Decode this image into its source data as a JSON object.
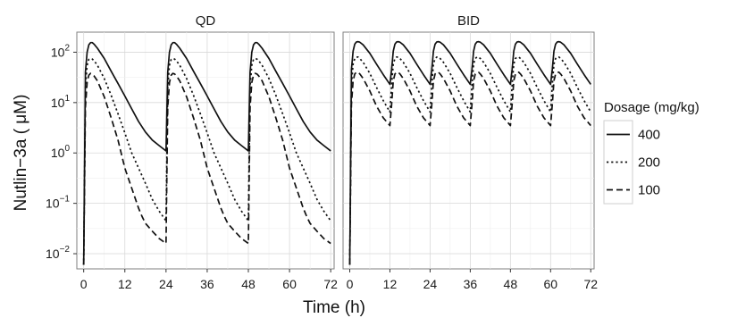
{
  "chart_data": {
    "type": "line",
    "facet_by": "regimen",
    "panels": [
      {
        "title": "QD",
        "dose_times_h": [
          0,
          24,
          48
        ],
        "series": [
          {
            "name": "400",
            "x": [
              0,
              0.5,
              1,
              1.5,
              2,
              2.5,
              3,
              4,
              6,
              8,
              10,
              12,
              14,
              16,
              18,
              20,
              22,
              24
            ],
            "y": [
              0.006,
              40,
              100,
              140,
              155,
              155,
              145,
              120,
              75,
              42,
              24,
              13.5,
              7.5,
              4.2,
              2.6,
              1.8,
              1.4,
              1.1
            ]
          },
          {
            "name": "200",
            "x": [
              0,
              0.5,
              1,
              1.5,
              2,
              2.5,
              3,
              4,
              6,
              8,
              10,
              12,
              14,
              16,
              18,
              20,
              22,
              24
            ],
            "y": [
              0.006,
              20,
              55,
              72,
              75,
              73,
              68,
              55,
              30,
              14,
              6,
              2.5,
              1,
              0.5,
              0.25,
              0.12,
              0.07,
              0.045
            ]
          },
          {
            "name": "100",
            "x": [
              0,
              0.5,
              1,
              1.5,
              2,
              2.5,
              3,
              4,
              6,
              8,
              10,
              12,
              14,
              16,
              17,
              18,
              20,
              22,
              24
            ],
            "y": [
              0.006,
              8,
              25,
              35,
              38,
              37,
              34,
              27,
              13,
              5,
              1.8,
              0.5,
              0.2,
              0.08,
              0.055,
              0.04,
              0.028,
              0.02,
              0.016
            ]
          }
        ]
      },
      {
        "title": "BID",
        "dose_times_h": [
          0,
          12,
          24,
          36,
          48,
          60
        ],
        "series": [
          {
            "name": "400",
            "x": [
              0,
              0.5,
              1,
              1.5,
              2,
              2.5,
              3,
              4,
              6,
              8,
              10,
              12
            ],
            "y": [
              0.006,
              45,
              105,
              145,
              160,
              162,
              158,
              140,
              95,
              58,
              36,
              23
            ]
          },
          {
            "name": "200",
            "x": [
              0,
              0.5,
              1,
              1.5,
              2,
              2.5,
              3,
              4,
              6,
              8,
              10,
              12
            ],
            "y": [
              0.006,
              22,
              58,
              75,
              80,
              80,
              75,
              63,
              38,
              20,
              11,
              6.5
            ]
          },
          {
            "name": "100",
            "x": [
              0,
              0.5,
              1,
              1.5,
              2,
              2.5,
              3,
              4,
              6,
              8,
              10,
              12
            ],
            "y": [
              0.006,
              9,
              27,
              37,
              40,
              40,
              37,
              30,
              17,
              8.5,
              5,
              3.5
            ]
          }
        ]
      }
    ],
    "xlabel": "Time (h)",
    "ylabel": "Nutlin−3a ( μM)",
    "x_ticks": [
      "0",
      "12",
      "24",
      "36",
      "48",
      "60",
      "72"
    ],
    "xlim": [
      -2,
      73
    ],
    "yscale": "log",
    "ylim": [
      0.005,
      250
    ],
    "y_ticks": [
      {
        "base": "10",
        "exp": "2"
      },
      {
        "base": "10",
        "exp": "1"
      },
      {
        "base": "10",
        "exp": "0"
      },
      {
        "base": "10",
        "exp": "−1"
      },
      {
        "base": "10",
        "exp": "−2"
      }
    ],
    "y_tick_values": [
      100,
      10,
      1,
      0.1,
      0.01
    ],
    "grid": true,
    "legend": {
      "title": "Dosage (mg/kg)",
      "placement": "right",
      "entries": [
        "400",
        "200",
        "100"
      ]
    },
    "line_styles": {
      "400": "solid",
      "200": "dotted",
      "100": "dashed"
    },
    "colors": {
      "line": "#111111",
      "panel_border": "#7f7f7f",
      "grid": "#d9d9d9"
    }
  }
}
